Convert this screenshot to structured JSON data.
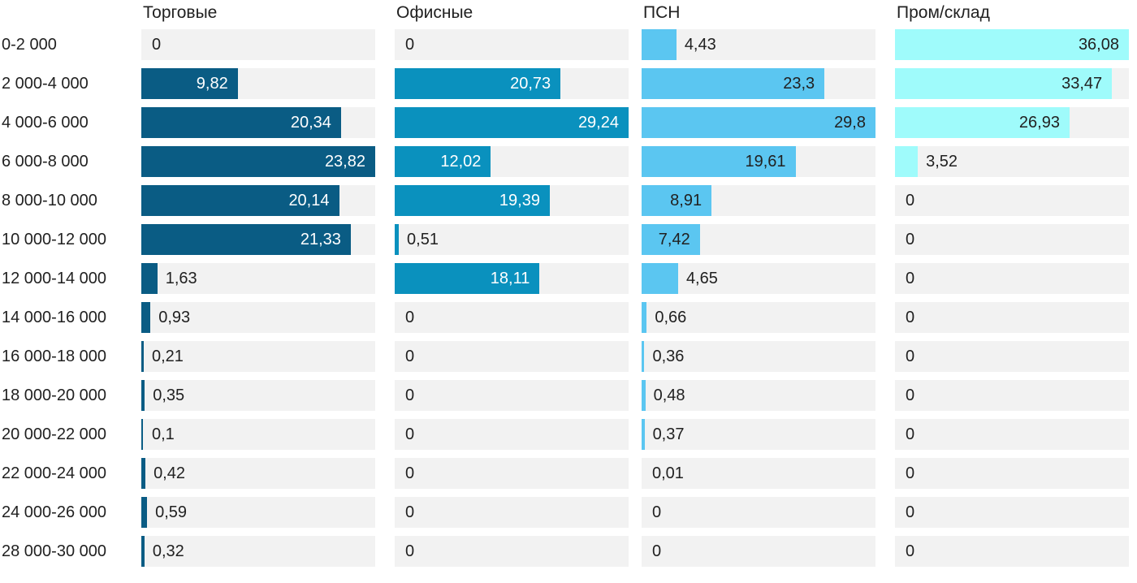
{
  "chart_data": {
    "type": "bar",
    "orientation": "horizontal",
    "layout": "small-multiples: 4 columns sharing one category axis, each column scaled to its own max value, no numeric axis shown, gridlines off, value labels on bars",
    "track_color": "#f2f2f2",
    "text_color": "#212121",
    "categories": [
      "0-2 000",
      "2 000-4 000",
      "4 000-6 000",
      "6 000-8 000",
      "8 000-10 000",
      "10 000-12 000",
      "12 000-14 000",
      "14 000-16 000",
      "16 000-18 000",
      "18 000-20 000",
      "20 000-22 000",
      "22 000-24 000",
      "24 000-26 000",
      "28 000-30 000"
    ],
    "series": [
      {
        "name": "Торговые",
        "color": "#0a5c84",
        "inside_label_color": "#ffffff",
        "values": [
          0,
          9.82,
          20.34,
          23.82,
          20.14,
          21.33,
          1.63,
          0.93,
          0.21,
          0.35,
          0.1,
          0.42,
          0.59,
          0.32
        ],
        "labels": [
          "0",
          "9,82",
          "20,34",
          "23,82",
          "20,14",
          "21,33",
          "1,63",
          "0,93",
          "0,21",
          "0,35",
          "0,1",
          "0,42",
          "0,59",
          "0,32"
        ]
      },
      {
        "name": "Офисные",
        "color": "#0a91be",
        "inside_label_color": "#ffffff",
        "values": [
          0,
          20.73,
          29.24,
          12.02,
          19.39,
          0.51,
          18.11,
          0,
          0,
          0,
          0,
          0,
          0,
          0
        ],
        "labels": [
          "0",
          "20,73",
          "29,24",
          "12,02",
          "19,39",
          "0,51",
          "18,11",
          "0",
          "0",
          "0",
          "0",
          "0",
          "0",
          "0"
        ]
      },
      {
        "name": "ПСН",
        "color": "#5bc6f1",
        "inside_label_color": "#212121",
        "values": [
          4.43,
          23.3,
          29.8,
          19.61,
          8.91,
          7.42,
          4.65,
          0.66,
          0.36,
          0.48,
          0.37,
          0.01,
          0,
          0
        ],
        "labels": [
          "4,43",
          "23,3",
          "29,8",
          "19,61",
          "8,91",
          "7,42",
          "4,65",
          "0,66",
          "0,36",
          "0,48",
          "0,37",
          "0,01",
          "0",
          "0"
        ]
      },
      {
        "name": "Пром/склад",
        "color": "#9ffbfb",
        "inside_label_color": "#212121",
        "values": [
          36.08,
          33.47,
          26.93,
          3.52,
          0,
          0,
          0,
          0,
          0,
          0,
          0,
          0,
          0,
          0
        ],
        "labels": [
          "36,08",
          "33,47",
          "26,93",
          "3,52",
          "0",
          "0",
          "0",
          "0",
          "0",
          "0",
          "0",
          "0",
          "0",
          "0"
        ]
      }
    ]
  }
}
